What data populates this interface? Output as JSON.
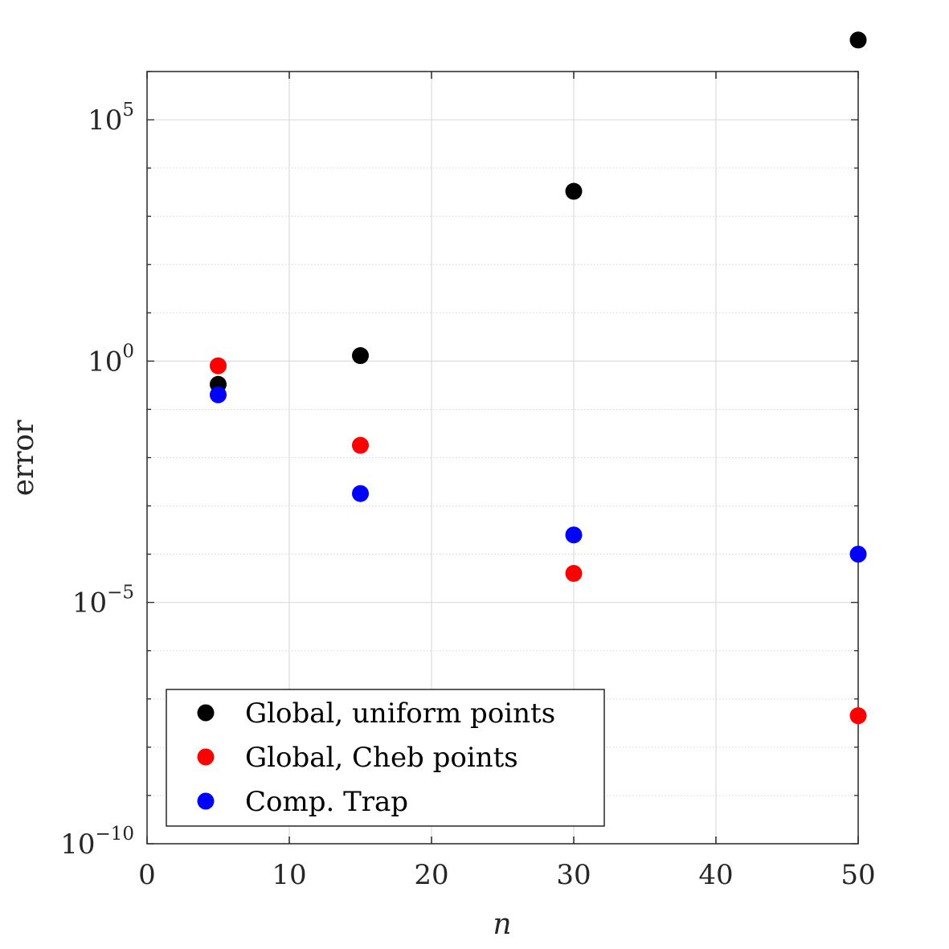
{
  "chart_data": {
    "type": "scatter",
    "title": "",
    "xlabel": "n",
    "ylabel": "error",
    "xlim": [
      0,
      50
    ],
    "ylim_log10": [
      -10,
      6
    ],
    "y_scale": "log",
    "grid": true,
    "legend_position": "bottom-left",
    "x_ticks": [
      0,
      10,
      20,
      30,
      40,
      50
    ],
    "x_tick_labels": [
      "0",
      "10",
      "20",
      "30",
      "40",
      "50"
    ],
    "y_ticks_log10": [
      -10,
      -5,
      0,
      5
    ],
    "y_tick_labels": [
      {
        "base": "10",
        "exp": "−10"
      },
      {
        "base": "10",
        "exp": "−5"
      },
      {
        "base": "10",
        "exp": "0"
      },
      {
        "base": "10",
        "exp": "5"
      }
    ],
    "series": [
      {
        "name": "Global, uniform points",
        "color": "#000000",
        "x": [
          5,
          15,
          30,
          50
        ],
        "y": [
          0.33,
          1.3,
          3300,
          4500000
        ]
      },
      {
        "name": "Global, Cheb points",
        "color": "#ff0000",
        "x": [
          5,
          15,
          30,
          50
        ],
        "y": [
          0.8,
          0.018,
          4e-05,
          4.5e-08
        ]
      },
      {
        "name": "Comp. Trap",
        "color": "#0000ff",
        "x": [
          5,
          15,
          30,
          50
        ],
        "y": [
          0.2,
          0.0018,
          0.00025,
          0.0001
        ]
      }
    ]
  }
}
